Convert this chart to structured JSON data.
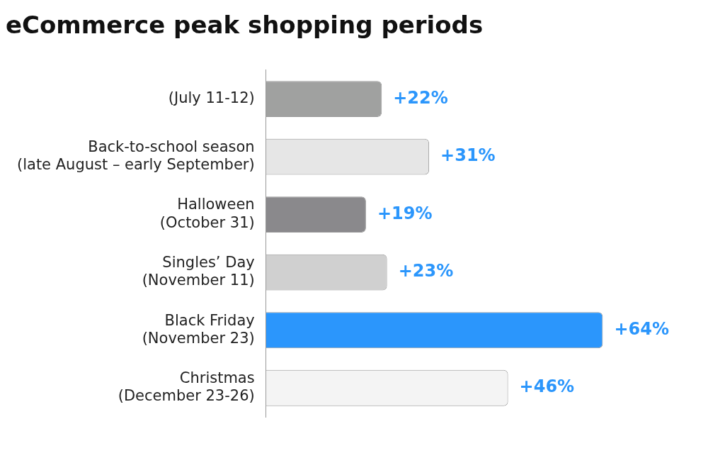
{
  "chart_data": {
    "type": "bar",
    "orientation": "horizontal",
    "title": "eCommerce peak shopping periods",
    "categories": [
      "(July 11-12)",
      "Back-to-school season\n(late August – early September)",
      "Halloween\n(October 31)",
      "Singles’ Day\n(November 11)",
      "Black Friday\n(November 23)",
      "Christmas\n(December 23-26)"
    ],
    "values": [
      22,
      31,
      19,
      23,
      64,
      46
    ],
    "colors": [
      "#a0a1a0",
      "#e6e6e6",
      "#8a898c",
      "#d0d0d0",
      "#2b96fc",
      "#f4f4f4"
    ],
    "value_labels": [
      "+22%",
      "+31%",
      "+19%",
      "+23%",
      "+64%",
      "+46%"
    ],
    "tick_labels": "y",
    "grid": false,
    "legend": false
  }
}
